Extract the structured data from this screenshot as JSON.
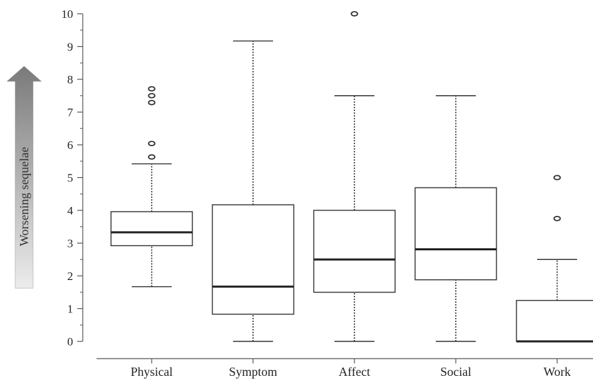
{
  "chart_data": {
    "type": "boxplot",
    "ylabel": "Worsening sequelae",
    "ylim": [
      0,
      10
    ],
    "yticks": [
      0,
      1,
      2,
      3,
      4,
      5,
      6,
      7,
      8,
      9,
      10
    ],
    "categories": [
      "Physical",
      "Symptom",
      "Affect",
      "Social",
      "Work"
    ],
    "boxes": [
      {
        "category": "Physical",
        "whisker_low": 1.67,
        "q1": 2.92,
        "median": 3.33,
        "q3": 3.96,
        "whisker_high": 5.42,
        "outliers": [
          5.63,
          6.04,
          7.29,
          7.5,
          7.71
        ]
      },
      {
        "category": "Symptom",
        "whisker_low": 0.0,
        "q1": 0.83,
        "median": 1.67,
        "q3": 4.17,
        "whisker_high": 9.17,
        "outliers": []
      },
      {
        "category": "Affect",
        "whisker_low": 0.0,
        "q1": 1.5,
        "median": 2.5,
        "q3": 4.0,
        "whisker_high": 7.5,
        "outliers": [
          10.0
        ]
      },
      {
        "category": "Social",
        "whisker_low": 0.0,
        "q1": 1.88,
        "median": 2.81,
        "q3": 4.69,
        "whisker_high": 7.5,
        "outliers": []
      },
      {
        "category": "Work",
        "whisker_low": 0.0,
        "q1": 0.0,
        "median": 0.0,
        "q3": 1.25,
        "whisker_high": 2.5,
        "outliers": [
          3.75,
          5.0
        ]
      }
    ],
    "legend_arrow": {
      "direction": "up",
      "colors": [
        "#e8e8e8",
        "#808080"
      ]
    },
    "grid": false
  }
}
